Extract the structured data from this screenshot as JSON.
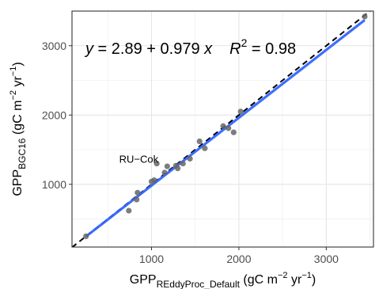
{
  "chart_data": {
    "type": "scatter",
    "xlim": [
      90,
      3540
    ],
    "ylim": [
      95,
      3500
    ],
    "x_ticks": [
      1000,
      2000,
      3000
    ],
    "y_ticks": [
      1000,
      2000,
      3000
    ],
    "x_tick_labels": [
      "1000",
      "2000",
      "3000"
    ],
    "y_tick_labels": [
      "1000",
      "2000",
      "3000"
    ],
    "xlabel": {
      "main": "GPP",
      "sub": "REddyProc_Default",
      "unit_start": " (gC m",
      "unit_exp1": "−2",
      "unit_mid": " yr",
      "unit_exp2": "−1",
      "unit_end": ")"
    },
    "ylabel": {
      "main": "GPP",
      "sub": "BGC16",
      "unit_start": " (gC m",
      "unit_exp1": "−2",
      "unit_mid": " yr",
      "unit_exp2": "−1",
      "unit_end": ")"
    },
    "equation": {
      "y": "y",
      "mid": " = 2.89 + 0.979 ",
      "x": "x",
      "r2_r": "R",
      "r2_exp": "2",
      "r2_value": " = 0.98"
    },
    "fit": {
      "intercept": 2.89,
      "slope": 0.979,
      "color": "#3366FF"
    },
    "one_to_one_line": {
      "color": "#000000",
      "style": "dashed"
    },
    "points": [
      {
        "x": 250,
        "y": 250
      },
      {
        "x": 740,
        "y": 620
      },
      {
        "x": 830,
        "y": 780
      },
      {
        "x": 840,
        "y": 880
      },
      {
        "x": 1000,
        "y": 1040
      },
      {
        "x": 1030,
        "y": 1060
      },
      {
        "x": 1060,
        "y": 1300
      },
      {
        "x": 1150,
        "y": 1170
      },
      {
        "x": 1180,
        "y": 1260
      },
      {
        "x": 1280,
        "y": 1270
      },
      {
        "x": 1300,
        "y": 1230
      },
      {
        "x": 1360,
        "y": 1300
      },
      {
        "x": 1440,
        "y": 1370
      },
      {
        "x": 1550,
        "y": 1620
      },
      {
        "x": 1610,
        "y": 1520
      },
      {
        "x": 1820,
        "y": 1840
      },
      {
        "x": 1880,
        "y": 1810
      },
      {
        "x": 1940,
        "y": 1750
      },
      {
        "x": 2020,
        "y": 2050
      },
      {
        "x": 3440,
        "y": 3420
      }
    ],
    "point_color": "#666666",
    "annotation": {
      "text": "RU−Cok",
      "x": 1060,
      "y": 1300
    },
    "grid": true
  }
}
